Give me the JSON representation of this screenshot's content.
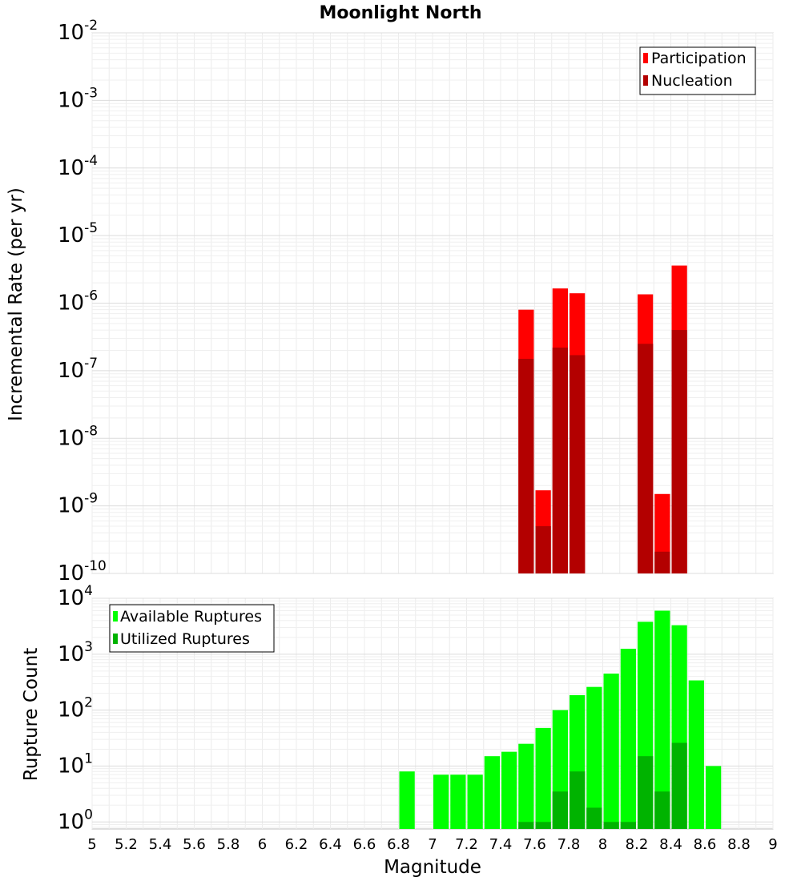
{
  "chart_data": [
    {
      "type": "bar",
      "title": "Moonlight North",
      "xlabel": "",
      "ylabel": "Incremental Rate (per yr)",
      "yscale": "log",
      "ylim": [
        1e-10,
        0.01
      ],
      "xlim": [
        5,
        9
      ],
      "y_tick_labels": [
        {
          "base": "10",
          "exp": "-10"
        },
        {
          "base": "10",
          "exp": "-9"
        },
        {
          "base": "10",
          "exp": "-8"
        },
        {
          "base": "10",
          "exp": "-7"
        },
        {
          "base": "10",
          "exp": "-6"
        },
        {
          "base": "10",
          "exp": "-5"
        },
        {
          "base": "10",
          "exp": "-4"
        },
        {
          "base": "10",
          "exp": "-3"
        },
        {
          "base": "10",
          "exp": "-2"
        }
      ],
      "legend_position": "top-right",
      "grid": true,
      "bin_width": 0.1,
      "series": [
        {
          "name": "Participation",
          "color": "#ff0000",
          "x": [
            7.55,
            7.65,
            7.75,
            7.85,
            8.25,
            8.35,
            8.45
          ],
          "values": [
            8e-07,
            1.7e-09,
            1.65e-06,
            1.4e-06,
            1.35e-06,
            1.5e-09,
            3.6e-06
          ]
        },
        {
          "name": "Nucleation",
          "color": "#b30000",
          "x": [
            7.55,
            7.65,
            7.75,
            7.85,
            8.25,
            8.35,
            8.45
          ],
          "values": [
            1.5e-07,
            5e-10,
            2.2e-07,
            1.7e-07,
            2.5e-07,
            2.1e-10,
            4e-07
          ]
        }
      ]
    },
    {
      "type": "bar",
      "title": "",
      "xlabel": "Magnitude",
      "ylabel": "Rupture Count",
      "yscale": "log",
      "ylim": [
        0.75,
        10000
      ],
      "xlim": [
        5,
        9
      ],
      "x_tick_labels": [
        "5",
        "5.2",
        "5.4",
        "5.6",
        "5.8",
        "6",
        "6.2",
        "6.4",
        "6.6",
        "6.8",
        "7",
        "7.2",
        "7.4",
        "7.6",
        "7.8",
        "8",
        "8.2",
        "8.4",
        "8.6",
        "8.8",
        "9"
      ],
      "y_tick_labels": [
        {
          "base": "10",
          "exp": "0"
        },
        {
          "base": "10",
          "exp": "1"
        },
        {
          "base": "10",
          "exp": "2"
        },
        {
          "base": "10",
          "exp": "3"
        },
        {
          "base": "10",
          "exp": "4"
        }
      ],
      "legend_position": "top-left",
      "grid": true,
      "bin_width": 0.1,
      "series": [
        {
          "name": "Available Ruptures",
          "color": "#00ff00",
          "x": [
            6.85,
            7.05,
            7.15,
            7.25,
            7.35,
            7.45,
            7.55,
            7.65,
            7.75,
            7.85,
            7.95,
            8.05,
            8.15,
            8.25,
            8.35,
            8.45,
            8.55,
            8.65
          ],
          "values": [
            8,
            7,
            7,
            7,
            15,
            18,
            25,
            48,
            100,
            185,
            260,
            450,
            1250,
            3800,
            6000,
            3300,
            340,
            10
          ]
        },
        {
          "name": "Utilized Ruptures",
          "color": "#00b300",
          "x": [
            7.55,
            7.65,
            7.75,
            7.85,
            7.95,
            8.05,
            8.15,
            8.25,
            8.35,
            8.45
          ],
          "values": [
            1,
            1,
            3.5,
            8,
            1.8,
            1,
            1,
            15,
            3.5,
            26
          ]
        }
      ]
    }
  ]
}
